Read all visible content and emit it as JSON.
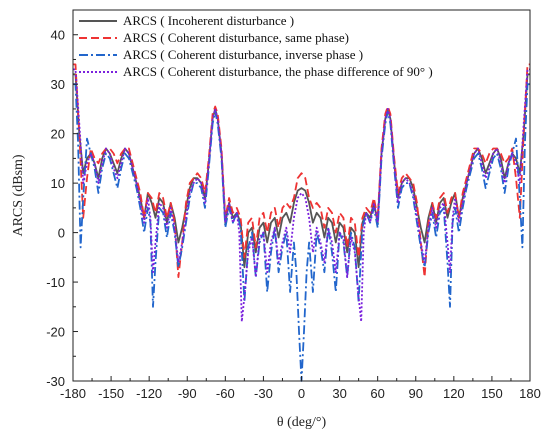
{
  "chart_data": {
    "type": "line",
    "title": "",
    "xlabel": "θ (deg/°)",
    "ylabel": "ARCS (dBsm)",
    "xlim": [
      -180,
      180
    ],
    "ylim": [
      -30,
      45
    ],
    "xticks": [
      -180,
      -150,
      -120,
      -90,
      -60,
      -30,
      0,
      30,
      60,
      90,
      120,
      150,
      180
    ],
    "yticks": [
      -30,
      -20,
      -10,
      0,
      10,
      20,
      30,
      40
    ],
    "grid": false,
    "legend_position": "top-left",
    "series": [
      {
        "name": "ARCS ( Incoherent disturbance )",
        "color": "#555555",
        "dash": "solid",
        "points": [
          [
            0,
            9
          ],
          [
            3,
            8.5
          ],
          [
            6,
            6
          ],
          [
            9,
            2
          ],
          [
            12,
            4
          ],
          [
            15,
            3
          ],
          [
            18,
            -1
          ],
          [
            21,
            3
          ],
          [
            24,
            2
          ],
          [
            27,
            -2
          ],
          [
            30,
            2
          ],
          [
            33,
            1
          ],
          [
            36,
            -4
          ],
          [
            39,
            1
          ],
          [
            42,
            0
          ],
          [
            45,
            -7
          ],
          [
            48,
            2
          ],
          [
            51,
            4
          ],
          [
            54,
            3
          ],
          [
            57,
            6
          ],
          [
            60,
            2
          ],
          [
            63,
            16
          ],
          [
            66,
            23
          ],
          [
            68,
            25
          ],
          [
            70,
            23
          ],
          [
            73,
            14
          ],
          [
            76,
            7
          ],
          [
            79,
            10
          ],
          [
            82,
            11
          ],
          [
            85,
            11
          ],
          [
            88,
            9
          ],
          [
            91,
            5
          ],
          [
            94,
            1
          ],
          [
            97,
            -2
          ],
          [
            100,
            3
          ],
          [
            103,
            6
          ],
          [
            106,
            2
          ],
          [
            109,
            6
          ],
          [
            112,
            7
          ],
          [
            115,
            3
          ],
          [
            118,
            6
          ],
          [
            121,
            8
          ],
          [
            124,
            3
          ],
          [
            127,
            7
          ],
          [
            130,
            10
          ],
          [
            133,
            13
          ],
          [
            136,
            16
          ],
          [
            139,
            17
          ],
          [
            142,
            15
          ],
          [
            145,
            12
          ],
          [
            148,
            14
          ],
          [
            151,
            16
          ],
          [
            154,
            17
          ],
          [
            157,
            15
          ],
          [
            160,
            11
          ],
          [
            163,
            14
          ],
          [
            166,
            16
          ],
          [
            169,
            15
          ],
          [
            172,
            12
          ],
          [
            175,
            20
          ],
          [
            178,
            32
          ],
          [
            180,
            32
          ]
        ]
      },
      {
        "name": "ARCS ( Coherent disturbance, same phase)",
        "color": "#ee3333",
        "dash": "dashed",
        "points": [
          [
            0,
            12
          ],
          [
            3,
            11
          ],
          [
            6,
            7
          ],
          [
            9,
            5
          ],
          [
            12,
            6
          ],
          [
            15,
            5
          ],
          [
            18,
            1
          ],
          [
            21,
            5
          ],
          [
            24,
            4
          ],
          [
            27,
            0
          ],
          [
            30,
            4
          ],
          [
            33,
            3
          ],
          [
            36,
            -3
          ],
          [
            39,
            3
          ],
          [
            42,
            2
          ],
          [
            45,
            -5
          ],
          [
            48,
            3
          ],
          [
            51,
            5
          ],
          [
            54,
            4
          ],
          [
            57,
            7
          ],
          [
            60,
            3
          ],
          [
            63,
            17
          ],
          [
            66,
            24
          ],
          [
            68,
            25.5
          ],
          [
            70,
            24
          ],
          [
            73,
            15
          ],
          [
            76,
            8
          ],
          [
            79,
            11
          ],
          [
            82,
            12
          ],
          [
            85,
            11
          ],
          [
            88,
            10
          ],
          [
            91,
            6
          ],
          [
            94,
            -2
          ],
          [
            97,
            -9
          ],
          [
            100,
            2
          ],
          [
            103,
            6
          ],
          [
            106,
            3
          ],
          [
            109,
            7
          ],
          [
            112,
            8
          ],
          [
            115,
            4
          ],
          [
            118,
            7
          ],
          [
            121,
            8
          ],
          [
            124,
            3
          ],
          [
            127,
            8
          ],
          [
            130,
            11
          ],
          [
            133,
            14
          ],
          [
            136,
            17
          ],
          [
            139,
            17
          ],
          [
            142,
            16
          ],
          [
            145,
            14
          ],
          [
            148,
            16
          ],
          [
            151,
            17
          ],
          [
            154,
            17
          ],
          [
            157,
            16
          ],
          [
            160,
            14
          ],
          [
            163,
            15
          ],
          [
            166,
            17
          ],
          [
            169,
            11
          ],
          [
            172,
            3
          ],
          [
            175,
            20
          ],
          [
            178,
            34
          ],
          [
            180,
            34
          ]
        ]
      },
      {
        "name": "ARCS ( Coherent disturbance, inverse phase )",
        "color": "#2266cc",
        "dash": "dashdot",
        "points": [
          [
            0,
            -30
          ],
          [
            2,
            -20
          ],
          [
            4,
            -8
          ],
          [
            6,
            -2
          ],
          [
            9,
            -12
          ],
          [
            12,
            0
          ],
          [
            15,
            -3
          ],
          [
            18,
            -8
          ],
          [
            21,
            1
          ],
          [
            24,
            -4
          ],
          [
            27,
            -12
          ],
          [
            30,
            0
          ],
          [
            33,
            -2
          ],
          [
            36,
            -9
          ],
          [
            39,
            0
          ],
          [
            42,
            -3
          ],
          [
            45,
            -14
          ],
          [
            48,
            1
          ],
          [
            51,
            4
          ],
          [
            54,
            2
          ],
          [
            57,
            5
          ],
          [
            60,
            1
          ],
          [
            63,
            15
          ],
          [
            66,
            22
          ],
          [
            68,
            24.5
          ],
          [
            70,
            22
          ],
          [
            73,
            13
          ],
          [
            76,
            5
          ],
          [
            79,
            9
          ],
          [
            82,
            10
          ],
          [
            85,
            10
          ],
          [
            88,
            7
          ],
          [
            91,
            2
          ],
          [
            94,
            -3
          ],
          [
            97,
            -7
          ],
          [
            100,
            0
          ],
          [
            103,
            4
          ],
          [
            106,
            -1
          ],
          [
            109,
            4
          ],
          [
            112,
            5
          ],
          [
            115,
            -6
          ],
          [
            117,
            -15
          ],
          [
            119,
            2
          ],
          [
            121,
            5
          ],
          [
            124,
            0
          ],
          [
            127,
            5
          ],
          [
            130,
            9
          ],
          [
            133,
            12
          ],
          [
            136,
            15
          ],
          [
            139,
            16
          ],
          [
            142,
            13
          ],
          [
            145,
            9
          ],
          [
            148,
            12
          ],
          [
            151,
            15
          ],
          [
            154,
            16
          ],
          [
            157,
            13
          ],
          [
            160,
            8
          ],
          [
            163,
            13
          ],
          [
            166,
            16
          ],
          [
            169,
            19
          ],
          [
            172,
            7
          ],
          [
            174,
            -3
          ],
          [
            176,
            18
          ],
          [
            178,
            30
          ],
          [
            180,
            30
          ]
        ]
      },
      {
        "name": "ARCS ( Coherent disturbance, the phase difference of 90° )",
        "color": "#7b22dd",
        "dash": "dotted",
        "points": [
          [
            0,
            8
          ],
          [
            3,
            7
          ],
          [
            6,
            3
          ],
          [
            9,
            -4
          ],
          [
            12,
            1
          ],
          [
            15,
            -2
          ],
          [
            18,
            -6
          ],
          [
            21,
            1
          ],
          [
            24,
            -2
          ],
          [
            27,
            -8
          ],
          [
            30,
            0
          ],
          [
            33,
            -1
          ],
          [
            36,
            -9
          ],
          [
            39,
            -1
          ],
          [
            42,
            -4
          ],
          [
            45,
            -13
          ],
          [
            47,
            -18
          ],
          [
            49,
            0
          ],
          [
            51,
            4
          ],
          [
            54,
            2
          ],
          [
            57,
            6
          ],
          [
            60,
            2
          ],
          [
            63,
            16
          ],
          [
            66,
            23
          ],
          [
            68,
            25
          ],
          [
            70,
            23
          ],
          [
            73,
            14
          ],
          [
            76,
            6
          ],
          [
            79,
            10
          ],
          [
            82,
            11
          ],
          [
            85,
            10
          ],
          [
            88,
            8
          ],
          [
            91,
            3
          ],
          [
            94,
            -2
          ],
          [
            97,
            -6
          ],
          [
            100,
            1
          ],
          [
            103,
            5
          ],
          [
            106,
            1
          ],
          [
            109,
            5
          ],
          [
            112,
            6
          ],
          [
            115,
            -2
          ],
          [
            117,
            -8
          ],
          [
            119,
            3
          ],
          [
            121,
            7
          ],
          [
            124,
            2
          ],
          [
            127,
            6
          ],
          [
            130,
            10
          ],
          [
            133,
            13
          ],
          [
            136,
            16
          ],
          [
            139,
            17
          ],
          [
            142,
            14
          ],
          [
            145,
            11
          ],
          [
            148,
            13
          ],
          [
            151,
            16
          ],
          [
            154,
            17
          ],
          [
            157,
            14
          ],
          [
            160,
            10
          ],
          [
            163,
            14
          ],
          [
            166,
            16
          ],
          [
            169,
            14
          ],
          [
            172,
            10
          ],
          [
            175,
            22
          ],
          [
            178,
            33
          ],
          [
            180,
            33
          ]
        ]
      }
    ]
  }
}
